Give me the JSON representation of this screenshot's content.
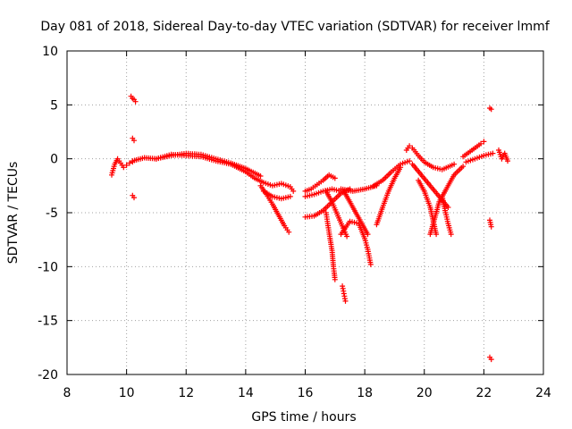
{
  "chart_data": {
    "type": "scatter",
    "title": "Day 081 of 2018, Sidereal Day-to-day VTEC variation (SDTVAR) for receiver lmmf",
    "xlabel": "GPS time / hours",
    "ylabel": "SDTVAR / TECUs",
    "xlim": [
      8,
      24
    ],
    "ylim": [
      -20,
      10
    ],
    "xticks": [
      8,
      10,
      12,
      14,
      16,
      18,
      20,
      22,
      24
    ],
    "yticks": [
      -20,
      -15,
      -10,
      -5,
      0,
      5,
      10
    ],
    "grid": true,
    "marker": "+",
    "color": "#ff0000",
    "series": [
      {
        "name": "cluster-9.5-10.2",
        "x": [
          9.5,
          9.6,
          9.7,
          9.8,
          9.9,
          10.0,
          10.1,
          10.2
        ],
        "y": [
          -1.5,
          -0.5,
          0.0,
          -0.4,
          -0.8,
          -0.6,
          -0.4,
          -0.3
        ]
      },
      {
        "name": "outlier-10.2-high",
        "x": [
          10.15,
          10.2,
          10.25,
          10.3
        ],
        "y": [
          5.8,
          5.6,
          5.5,
          5.3
        ]
      },
      {
        "name": "outlier-10.2-mid",
        "x": [
          10.2,
          10.25
        ],
        "y": [
          1.9,
          1.7
        ]
      },
      {
        "name": "outlier-10.2-low",
        "x": [
          10.2,
          10.25
        ],
        "y": [
          -3.4,
          -3.6
        ]
      },
      {
        "name": "arc-10.2-15.6",
        "x": [
          10.2,
          10.6,
          11.0,
          11.5,
          12.0,
          12.5,
          13.0,
          13.5,
          14.0,
          14.3,
          14.6,
          14.9,
          15.2,
          15.5,
          15.6
        ],
        "y": [
          -0.2,
          0.1,
          0.0,
          0.4,
          0.3,
          0.2,
          -0.2,
          -0.5,
          -1.2,
          -1.8,
          -2.2,
          -2.5,
          -2.3,
          -2.6,
          -3.0
        ]
      },
      {
        "name": "arc-11-14.5",
        "x": [
          11.0,
          11.5,
          12.0,
          12.5,
          13.0,
          13.5,
          14.0,
          14.5
        ],
        "y": [
          0.0,
          0.3,
          0.5,
          0.4,
          0.0,
          -0.4,
          -0.9,
          -1.6
        ]
      },
      {
        "name": "descent-14.5-15.5",
        "x": [
          14.5,
          14.7,
          14.9,
          15.1,
          15.3,
          15.45
        ],
        "y": [
          -2.5,
          -3.3,
          -4.2,
          -5.2,
          -6.2,
          -6.8
        ]
      },
      {
        "name": "arc-14.6-15.5-b",
        "x": [
          14.6,
          14.9,
          15.2,
          15.5
        ],
        "y": [
          -3.0,
          -3.5,
          -3.7,
          -3.5
        ]
      },
      {
        "name": "arc-16-17",
        "x": [
          16.0,
          16.2,
          16.4,
          16.6,
          16.8,
          17.0
        ],
        "y": [
          -3.0,
          -2.8,
          -2.4,
          -2.0,
          -1.5,
          -1.8
        ]
      },
      {
        "name": "arc-16-17-b",
        "x": [
          16.0,
          16.3,
          16.6,
          16.9,
          17.2
        ],
        "y": [
          -3.5,
          -3.3,
          -3.0,
          -2.8,
          -3.0
        ]
      },
      {
        "name": "descent-16.9-17",
        "x": [
          16.7,
          16.8,
          16.9,
          16.95,
          17.0
        ],
        "y": [
          -5.0,
          -6.8,
          -8.5,
          -10.0,
          -11.2
        ]
      },
      {
        "name": "outlier-17.3",
        "x": [
          17.25,
          17.3,
          17.35
        ],
        "y": [
          -11.8,
          -12.5,
          -13.2
        ]
      },
      {
        "name": "cross-16-17.5",
        "x": [
          16.0,
          16.3,
          16.6,
          16.9,
          17.2,
          17.5
        ],
        "y": [
          -5.4,
          -5.3,
          -4.8,
          -4.0,
          -3.2,
          -2.8
        ]
      },
      {
        "name": "descent-16.7-17.5",
        "x": [
          16.7,
          16.9,
          17.1,
          17.3,
          17.4
        ],
        "y": [
          -3.0,
          -4.0,
          -5.3,
          -6.6,
          -7.2
        ]
      },
      {
        "name": "cross-17-18.2",
        "x": [
          17.2,
          17.5,
          17.8,
          18.0,
          18.1,
          18.2
        ],
        "y": [
          -7.0,
          -5.8,
          -6.0,
          -7.4,
          -8.4,
          -9.8
        ]
      },
      {
        "name": "cross-17.3-18",
        "x": [
          17.3,
          17.5,
          17.7,
          17.9,
          18.1
        ],
        "y": [
          -3.0,
          -4.0,
          -5.0,
          -6.0,
          -7.0
        ]
      },
      {
        "name": "arc-17.2-18.4",
        "x": [
          17.2,
          17.6,
          18.0,
          18.4
        ],
        "y": [
          -2.8,
          -3.0,
          -2.8,
          -2.5
        ]
      },
      {
        "name": "rise-18.4-19.2",
        "x": [
          18.4,
          18.6,
          18.8,
          19.0,
          19.2
        ],
        "y": [
          -6.1,
          -4.5,
          -3.0,
          -1.8,
          -0.8
        ]
      },
      {
        "name": "arc-18.3-19.5",
        "x": [
          18.3,
          18.6,
          18.9,
          19.2,
          19.5
        ],
        "y": [
          -2.5,
          -2.0,
          -1.2,
          -0.5,
          -0.2
        ]
      },
      {
        "name": "peak-19.5-20.5",
        "x": [
          19.4,
          19.5,
          19.6,
          19.8,
          20.0,
          20.3,
          20.6,
          21.0
        ],
        "y": [
          0.8,
          1.2,
          1.0,
          0.3,
          -0.3,
          -0.8,
          -1.0,
          -0.5
        ]
      },
      {
        "name": "descent-19.8-20.5",
        "x": [
          19.8,
          20.0,
          20.2,
          20.4
        ],
        "y": [
          -2.0,
          -3.0,
          -4.5,
          -7.0
        ]
      },
      {
        "name": "cross-19.6-21",
        "x": [
          19.6,
          19.9,
          20.2,
          20.5,
          20.8
        ],
        "y": [
          -0.5,
          -1.5,
          -2.5,
          -3.5,
          -4.5
        ]
      },
      {
        "name": "descent-20.6-21",
        "x": [
          20.6,
          20.7,
          20.8,
          20.9
        ],
        "y": [
          -3.5,
          -4.8,
          -6.0,
          -7.0
        ]
      },
      {
        "name": "rise-20.5-21.3",
        "x": [
          20.2,
          20.5,
          20.8,
          21.0,
          21.3
        ],
        "y": [
          -7.0,
          -4.0,
          -2.5,
          -1.5,
          -0.7
        ]
      },
      {
        "name": "arc-21.3-22",
        "x": [
          21.3,
          21.6,
          21.9,
          22.0
        ],
        "y": [
          0.2,
          0.8,
          1.4,
          1.6
        ]
      },
      {
        "name": "arc-21.4-22.3",
        "x": [
          21.4,
          21.7,
          22.0,
          22.3
        ],
        "y": [
          -0.3,
          0.0,
          0.3,
          0.5
        ]
      },
      {
        "name": "cluster-22.5-22.8",
        "x": [
          22.5,
          22.6,
          22.7,
          22.8
        ],
        "y": [
          0.8,
          0.0,
          0.5,
          -0.2
        ]
      },
      {
        "name": "outlier-22.2-high",
        "x": [
          22.2,
          22.25
        ],
        "y": [
          4.7,
          4.6
        ]
      },
      {
        "name": "outlier-22.2-mid",
        "x": [
          22.2,
          22.25
        ],
        "y": [
          -5.7,
          -6.3
        ]
      },
      {
        "name": "outlier-22.2-low",
        "x": [
          22.2,
          22.25
        ],
        "y": [
          -18.4,
          -18.6
        ]
      }
    ]
  }
}
